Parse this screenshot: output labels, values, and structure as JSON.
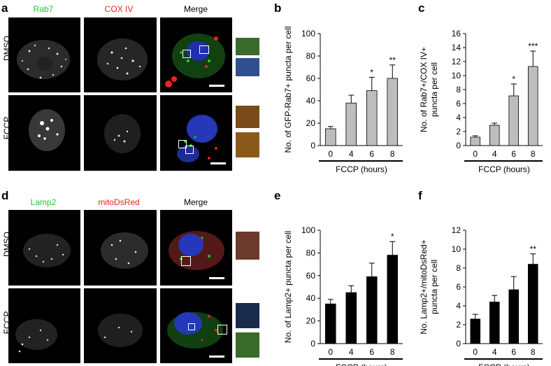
{
  "panels": {
    "a": {
      "letter": "a",
      "channels": [
        "Rab7",
        "COX IV",
        "Merge"
      ],
      "channel_colors": [
        "#27c43a",
        "#e8251d",
        "#000000"
      ],
      "rows": [
        "DMSO",
        "FCCP"
      ]
    },
    "d": {
      "letter": "d",
      "channels": [
        "Lamp2",
        "mitoDsRed",
        "Merge"
      ],
      "channel_colors": [
        "#27c43a",
        "#e8251d",
        "#000000"
      ],
      "rows": [
        "DMSO",
        "FCCP"
      ]
    },
    "b": {
      "letter": "b"
    },
    "c": {
      "letter": "c"
    },
    "e": {
      "letter": "e"
    },
    "f": {
      "letter": "f"
    }
  },
  "chart_data": [
    {
      "id": "b",
      "type": "bar",
      "bar_color": "#bdbdbd",
      "categories": [
        "0",
        "4",
        "6",
        "8"
      ],
      "values": [
        15,
        38,
        49,
        60
      ],
      "errors": [
        2,
        7,
        12,
        12
      ],
      "significance": [
        "",
        "",
        "*",
        "**"
      ],
      "ylabel": "No. of GFP-Rab7+ puncta per cell",
      "xlabel": "FCCP (hours)",
      "ylim": [
        0,
        100
      ],
      "yticks": [
        0,
        20,
        40,
        60,
        80,
        100
      ]
    },
    {
      "id": "c",
      "type": "bar",
      "bar_color": "#bdbdbd",
      "categories": [
        "0",
        "4",
        "6",
        "8"
      ],
      "values": [
        1.2,
        2.9,
        7.1,
        11.3
      ],
      "errors": [
        0.2,
        0.3,
        1.7,
        2.2
      ],
      "significance": [
        "",
        "",
        "*",
        "***"
      ],
      "ylabel": "No. of Rab7+/COX IV+ puncta per cell",
      "ylabel_lines": [
        "No. of Rab7+/COX IV+",
        "puncta per cell"
      ],
      "xlabel": "FCCP (hours)",
      "ylim": [
        0,
        16
      ],
      "yticks": [
        0,
        2,
        4,
        6,
        8,
        10,
        12,
        14,
        16
      ]
    },
    {
      "id": "e",
      "type": "bar",
      "bar_color": "#000000",
      "categories": [
        "0",
        "4",
        "6",
        "8"
      ],
      "values": [
        35,
        45,
        59,
        78
      ],
      "errors": [
        4,
        6,
        12,
        12
      ],
      "significance": [
        "",
        "",
        "",
        "*"
      ],
      "ylabel": "No. of Lamp2+ puncta per cell",
      "xlabel": "FCCP (hours)",
      "ylim": [
        0,
        100
      ],
      "yticks": [
        0,
        20,
        40,
        60,
        80,
        100
      ]
    },
    {
      "id": "f",
      "type": "bar",
      "bar_color": "#000000",
      "categories": [
        "0",
        "4",
        "6",
        "8"
      ],
      "values": [
        2.6,
        4.4,
        5.7,
        8.4
      ],
      "errors": [
        0.5,
        0.7,
        1.4,
        1.1
      ],
      "significance": [
        "",
        "",
        "",
        "**"
      ],
      "ylabel": "No. Lamp2+/mitoDsRed+ puncta per cell",
      "ylabel_lines": [
        "No. Lamp2+/mitoDsRed+",
        "puncta per cell"
      ],
      "xlabel": "FCCP (hours)",
      "ylim": [
        0,
        12
      ],
      "yticks": [
        0,
        2,
        4,
        6,
        8,
        10,
        12
      ]
    }
  ]
}
